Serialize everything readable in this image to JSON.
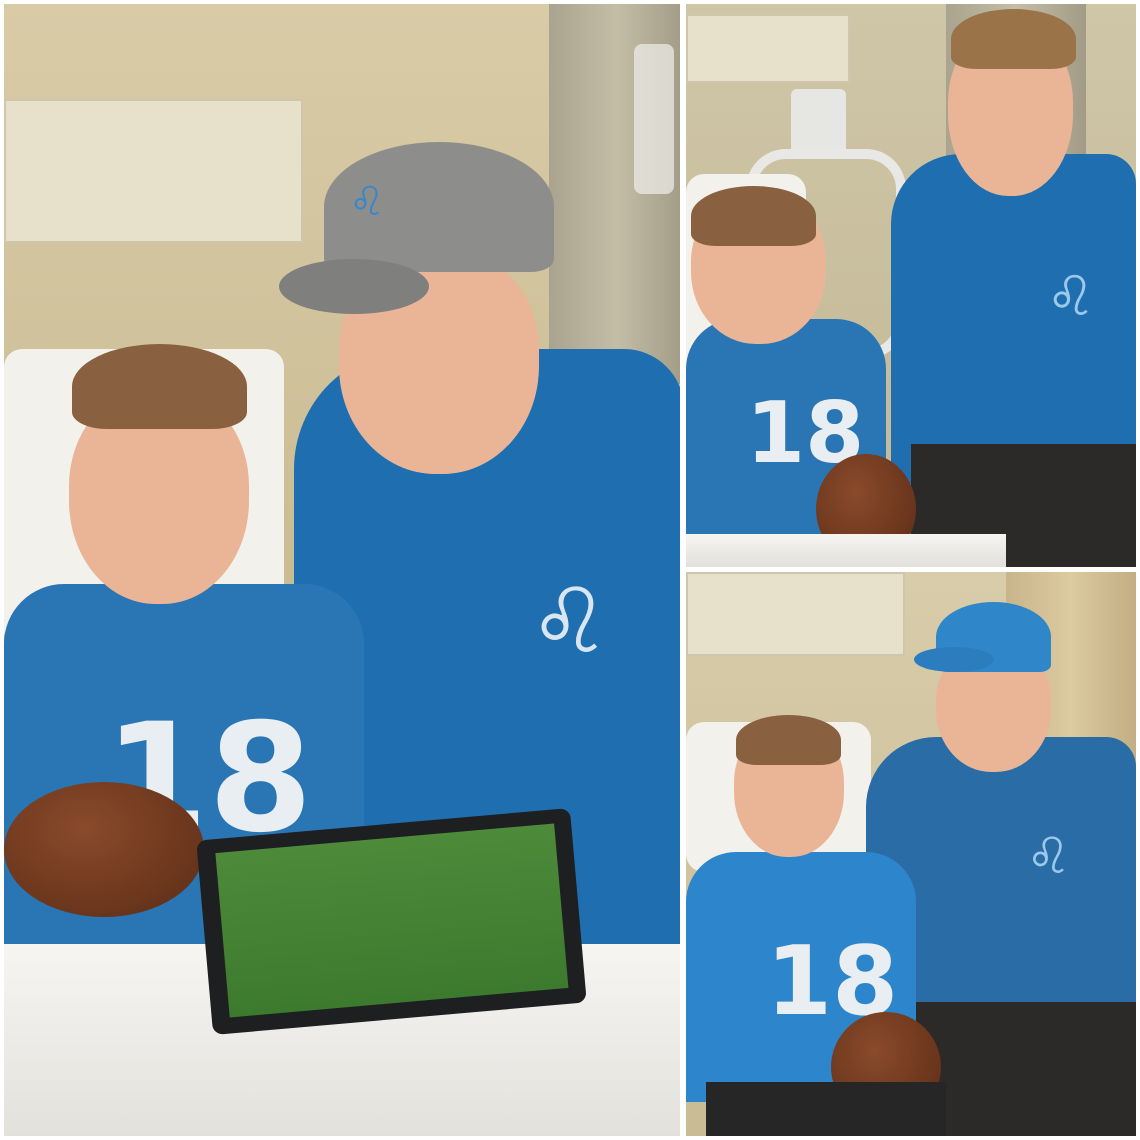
{
  "image": {
    "layout": "collage-three-panels",
    "panels": [
      {
        "scene": "hospital-room-tablet",
        "jersey_number": "18"
      },
      {
        "scene": "hospital-bed-laughing",
        "jersey_number": "18"
      },
      {
        "scene": "hospital-bedside-cap",
        "jersey_number": "18"
      }
    ],
    "colors": {
      "jersey_blue": "#1f6fb0",
      "wall": "#d9cba6",
      "sheet": "#f3f1ec"
    }
  }
}
